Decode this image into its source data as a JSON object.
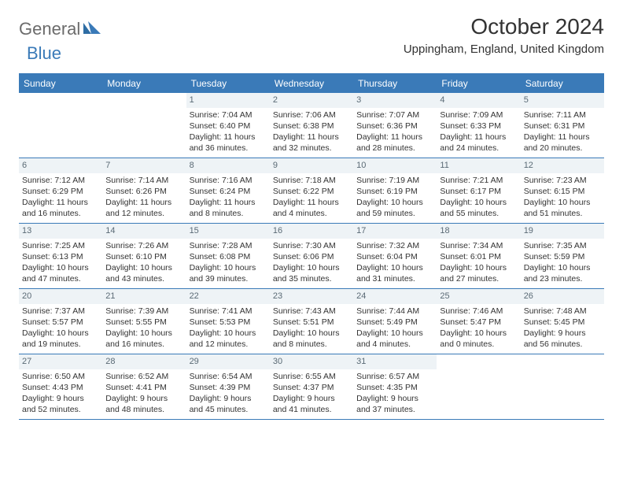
{
  "brand": {
    "word1": "General",
    "word2": "Blue",
    "text_color_1": "#6b6b6b",
    "text_color_2": "#3a7ab8"
  },
  "title": "October 2024",
  "location": "Uppingham, England, United Kingdom",
  "colors": {
    "header_bg": "#3a7ab8",
    "header_text": "#ffffff",
    "daynum_bg": "#eef3f6",
    "daynum_text": "#5a6a75",
    "border": "#3a7ab8",
    "body_text": "#333333",
    "page_bg": "#ffffff"
  },
  "dow": [
    "Sunday",
    "Monday",
    "Tuesday",
    "Wednesday",
    "Thursday",
    "Friday",
    "Saturday"
  ],
  "weeks": [
    [
      {
        "n": "",
        "sr": "",
        "ss": "",
        "dl": ""
      },
      {
        "n": "",
        "sr": "",
        "ss": "",
        "dl": ""
      },
      {
        "n": "1",
        "sr": "Sunrise: 7:04 AM",
        "ss": "Sunset: 6:40 PM",
        "dl": "Daylight: 11 hours and 36 minutes."
      },
      {
        "n": "2",
        "sr": "Sunrise: 7:06 AM",
        "ss": "Sunset: 6:38 PM",
        "dl": "Daylight: 11 hours and 32 minutes."
      },
      {
        "n": "3",
        "sr": "Sunrise: 7:07 AM",
        "ss": "Sunset: 6:36 PM",
        "dl": "Daylight: 11 hours and 28 minutes."
      },
      {
        "n": "4",
        "sr": "Sunrise: 7:09 AM",
        "ss": "Sunset: 6:33 PM",
        "dl": "Daylight: 11 hours and 24 minutes."
      },
      {
        "n": "5",
        "sr": "Sunrise: 7:11 AM",
        "ss": "Sunset: 6:31 PM",
        "dl": "Daylight: 11 hours and 20 minutes."
      }
    ],
    [
      {
        "n": "6",
        "sr": "Sunrise: 7:12 AM",
        "ss": "Sunset: 6:29 PM",
        "dl": "Daylight: 11 hours and 16 minutes."
      },
      {
        "n": "7",
        "sr": "Sunrise: 7:14 AM",
        "ss": "Sunset: 6:26 PM",
        "dl": "Daylight: 11 hours and 12 minutes."
      },
      {
        "n": "8",
        "sr": "Sunrise: 7:16 AM",
        "ss": "Sunset: 6:24 PM",
        "dl": "Daylight: 11 hours and 8 minutes."
      },
      {
        "n": "9",
        "sr": "Sunrise: 7:18 AM",
        "ss": "Sunset: 6:22 PM",
        "dl": "Daylight: 11 hours and 4 minutes."
      },
      {
        "n": "10",
        "sr": "Sunrise: 7:19 AM",
        "ss": "Sunset: 6:19 PM",
        "dl": "Daylight: 10 hours and 59 minutes."
      },
      {
        "n": "11",
        "sr": "Sunrise: 7:21 AM",
        "ss": "Sunset: 6:17 PM",
        "dl": "Daylight: 10 hours and 55 minutes."
      },
      {
        "n": "12",
        "sr": "Sunrise: 7:23 AM",
        "ss": "Sunset: 6:15 PM",
        "dl": "Daylight: 10 hours and 51 minutes."
      }
    ],
    [
      {
        "n": "13",
        "sr": "Sunrise: 7:25 AM",
        "ss": "Sunset: 6:13 PM",
        "dl": "Daylight: 10 hours and 47 minutes."
      },
      {
        "n": "14",
        "sr": "Sunrise: 7:26 AM",
        "ss": "Sunset: 6:10 PM",
        "dl": "Daylight: 10 hours and 43 minutes."
      },
      {
        "n": "15",
        "sr": "Sunrise: 7:28 AM",
        "ss": "Sunset: 6:08 PM",
        "dl": "Daylight: 10 hours and 39 minutes."
      },
      {
        "n": "16",
        "sr": "Sunrise: 7:30 AM",
        "ss": "Sunset: 6:06 PM",
        "dl": "Daylight: 10 hours and 35 minutes."
      },
      {
        "n": "17",
        "sr": "Sunrise: 7:32 AM",
        "ss": "Sunset: 6:04 PM",
        "dl": "Daylight: 10 hours and 31 minutes."
      },
      {
        "n": "18",
        "sr": "Sunrise: 7:34 AM",
        "ss": "Sunset: 6:01 PM",
        "dl": "Daylight: 10 hours and 27 minutes."
      },
      {
        "n": "19",
        "sr": "Sunrise: 7:35 AM",
        "ss": "Sunset: 5:59 PM",
        "dl": "Daylight: 10 hours and 23 minutes."
      }
    ],
    [
      {
        "n": "20",
        "sr": "Sunrise: 7:37 AM",
        "ss": "Sunset: 5:57 PM",
        "dl": "Daylight: 10 hours and 19 minutes."
      },
      {
        "n": "21",
        "sr": "Sunrise: 7:39 AM",
        "ss": "Sunset: 5:55 PM",
        "dl": "Daylight: 10 hours and 16 minutes."
      },
      {
        "n": "22",
        "sr": "Sunrise: 7:41 AM",
        "ss": "Sunset: 5:53 PM",
        "dl": "Daylight: 10 hours and 12 minutes."
      },
      {
        "n": "23",
        "sr": "Sunrise: 7:43 AM",
        "ss": "Sunset: 5:51 PM",
        "dl": "Daylight: 10 hours and 8 minutes."
      },
      {
        "n": "24",
        "sr": "Sunrise: 7:44 AM",
        "ss": "Sunset: 5:49 PM",
        "dl": "Daylight: 10 hours and 4 minutes."
      },
      {
        "n": "25",
        "sr": "Sunrise: 7:46 AM",
        "ss": "Sunset: 5:47 PM",
        "dl": "Daylight: 10 hours and 0 minutes."
      },
      {
        "n": "26",
        "sr": "Sunrise: 7:48 AM",
        "ss": "Sunset: 5:45 PM",
        "dl": "Daylight: 9 hours and 56 minutes."
      }
    ],
    [
      {
        "n": "27",
        "sr": "Sunrise: 6:50 AM",
        "ss": "Sunset: 4:43 PM",
        "dl": "Daylight: 9 hours and 52 minutes."
      },
      {
        "n": "28",
        "sr": "Sunrise: 6:52 AM",
        "ss": "Sunset: 4:41 PM",
        "dl": "Daylight: 9 hours and 48 minutes."
      },
      {
        "n": "29",
        "sr": "Sunrise: 6:54 AM",
        "ss": "Sunset: 4:39 PM",
        "dl": "Daylight: 9 hours and 45 minutes."
      },
      {
        "n": "30",
        "sr": "Sunrise: 6:55 AM",
        "ss": "Sunset: 4:37 PM",
        "dl": "Daylight: 9 hours and 41 minutes."
      },
      {
        "n": "31",
        "sr": "Sunrise: 6:57 AM",
        "ss": "Sunset: 4:35 PM",
        "dl": "Daylight: 9 hours and 37 minutes."
      },
      {
        "n": "",
        "sr": "",
        "ss": "",
        "dl": ""
      },
      {
        "n": "",
        "sr": "",
        "ss": "",
        "dl": ""
      }
    ]
  ]
}
